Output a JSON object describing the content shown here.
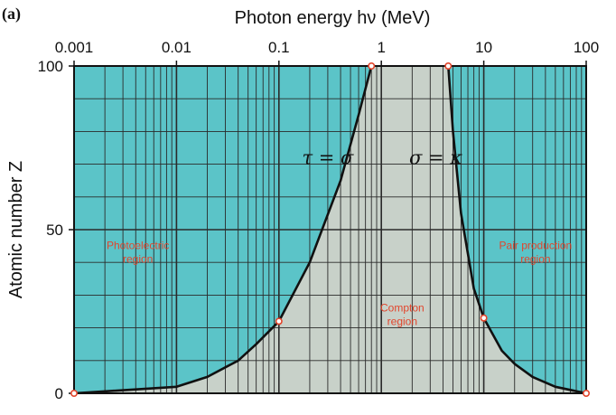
{
  "chart_data": {
    "type": "line",
    "panel_label": "(a)",
    "xlabel": "Photon energy hν (MeV)",
    "ylabel": "Atomic number Z",
    "x_scale": "log",
    "xlim": [
      0.001,
      100
    ],
    "ylim": [
      0,
      100
    ],
    "x_ticks": [
      {
        "value": 0.001,
        "label": "0.001"
      },
      {
        "value": 0.01,
        "label": "0.01"
      },
      {
        "value": 0.1,
        "label": "0.1"
      },
      {
        "value": 1,
        "label": "1"
      },
      {
        "value": 10,
        "label": "10"
      },
      {
        "value": 100,
        "label": "100"
      }
    ],
    "y_ticks": [
      {
        "value": 0,
        "label": "0"
      },
      {
        "value": 50,
        "label": "50"
      },
      {
        "value": 100,
        "label": "100"
      }
    ],
    "grid": true,
    "colors": {
      "photoelectric_fill": "#5bc4c8",
      "compton_fill": "#c8d1c9",
      "curve": "#111111",
      "marker": "#e2452c",
      "region_text": "#e2452c"
    },
    "series": [
      {
        "name": "τ = σ",
        "x": [
          0.001,
          0.01,
          0.02,
          0.04,
          0.06,
          0.1,
          0.2,
          0.4,
          0.6,
          0.8
        ],
        "y": [
          0,
          2,
          5,
          10,
          15,
          22,
          40,
          65,
          85,
          100
        ]
      },
      {
        "name": "σ = κ",
        "x": [
          4.5,
          5,
          6,
          8,
          10,
          15,
          20,
          30,
          50,
          100
        ],
        "y": [
          100,
          80,
          55,
          32,
          23,
          13,
          9,
          5,
          2,
          0
        ]
      }
    ],
    "marked_points": [
      {
        "x": 0.001,
        "y": 0
      },
      {
        "x": 0.1,
        "y": 22
      },
      {
        "x": 0.8,
        "y": 100
      },
      {
        "x": 4.5,
        "y": 100
      },
      {
        "x": 10,
        "y": 23
      },
      {
        "x": 100,
        "y": 0
      }
    ],
    "region_labels": [
      {
        "lines": [
          "Photoelectric",
          "region"
        ],
        "x": 0.0042,
        "y": 44
      },
      {
        "lines": [
          "Compton",
          "region"
        ],
        "x": 1.6,
        "y": 25
      },
      {
        "lines": [
          "Pair production",
          "region"
        ],
        "x": 32,
        "y": 44
      }
    ],
    "curve_labels": [
      {
        "text": "τ = σ",
        "x": 0.3,
        "y": 70
      },
      {
        "text": "σ = κ",
        "x": 3.4,
        "y": 70
      }
    ]
  }
}
